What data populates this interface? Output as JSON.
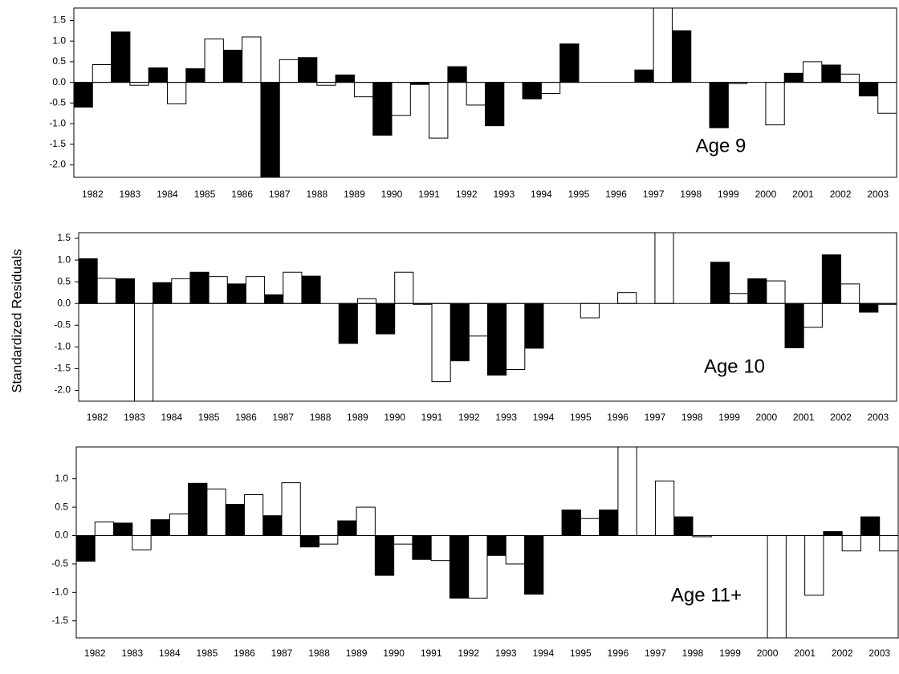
{
  "y_axis_label": "Standardized Residuals",
  "chart_data": [
    {
      "type": "bar",
      "annotation": "Age 9",
      "categories": [
        "1982",
        "1983",
        "1984",
        "1985",
        "1986",
        "1987",
        "1988",
        "1989",
        "1990",
        "1991",
        "1992",
        "1993",
        "1994",
        "1995",
        "1996",
        "1997",
        "1998",
        "1999",
        "2000",
        "2001",
        "2002",
        "2003"
      ],
      "series": [
        {
          "color": "#000000",
          "values": [
            -0.6,
            1.22,
            0.35,
            0.33,
            0.78,
            -2.3,
            0.6,
            0.18,
            -1.28,
            -0.05,
            0.38,
            -1.05,
            -0.4,
            0.93,
            0,
            0.3,
            1.25,
            -1.1,
            0,
            0.22,
            0.42,
            -0.33
          ]
        },
        {
          "color": "#ffffff",
          "values": [
            0.43,
            -0.07,
            -0.52,
            1.05,
            1.1,
            0.55,
            -0.07,
            -0.35,
            -0.8,
            -1.35,
            -0.55,
            0,
            -0.27,
            0,
            0,
            1.8,
            0,
            -0.03,
            -1.03,
            0.5,
            0.2,
            -0.75
          ]
        }
      ],
      "ylim": [
        -2.3,
        1.8
      ],
      "yticks": [
        {
          "value": -2,
          "label": "-2.0"
        },
        -1.5,
        {
          "value": -1,
          "label": "-1.0"
        },
        -0.5,
        {
          "value": 0,
          "label": "0.0"
        },
        0.5,
        {
          "value": 1,
          "label": "1.0"
        },
        1.5
      ]
    },
    {
      "type": "bar",
      "annotation": "Age 10",
      "categories": [
        "1982",
        "1983",
        "1984",
        "1985",
        "1986",
        "1987",
        "1988",
        "1989",
        "1990",
        "1991",
        "1992",
        "1993",
        "1994",
        "1995",
        "1996",
        "1997",
        "1998",
        "1999",
        "2000",
        "2001",
        "2002",
        "2003"
      ],
      "series": [
        {
          "color": "#000000",
          "values": [
            1.03,
            0.57,
            0.48,
            0.72,
            0.45,
            0.2,
            0.63,
            -0.92,
            -0.7,
            -0.02,
            -1.32,
            -1.65,
            -1.03,
            0,
            0,
            0,
            0,
            0.95,
            0.57,
            -1.02,
            1.12,
            -0.2
          ]
        },
        {
          "color": "#ffffff",
          "values": [
            0.58,
            -2.25,
            0.57,
            0.62,
            0.62,
            0.72,
            0,
            0.11,
            0.72,
            -1.8,
            -0.75,
            -1.52,
            0,
            -0.33,
            0.25,
            1.63,
            0,
            0.23,
            0.52,
            -0.55,
            0.45,
            -0.02
          ]
        }
      ],
      "ylim": [
        -2.25,
        1.63
      ],
      "yticks": [
        {
          "value": -2,
          "label": "-2.0"
        },
        -1.5,
        {
          "value": -1,
          "label": "-1.0"
        },
        -0.5,
        {
          "value": 0,
          "label": "0.0"
        },
        0.5,
        {
          "value": 1,
          "label": "1.0"
        },
        1.5
      ]
    },
    {
      "type": "bar",
      "annotation": "Age 11+",
      "categories": [
        "1982",
        "1983",
        "1984",
        "1985",
        "1986",
        "1987",
        "1988",
        "1989",
        "1990",
        "1991",
        "1992",
        "1993",
        "1994",
        "1995",
        "1996",
        "1997",
        "1998",
        "1999",
        "2000",
        "2001",
        "2002",
        "2003"
      ],
      "series": [
        {
          "color": "#000000",
          "values": [
            -0.45,
            0.22,
            0.28,
            0.92,
            0.55,
            0.35,
            -0.2,
            0.26,
            -0.7,
            -0.42,
            -1.1,
            -0.35,
            -1.03,
            0.45,
            0.45,
            0,
            0.33,
            0,
            0,
            0,
            0.07,
            0.33
          ]
        },
        {
          "color": "#ffffff",
          "values": [
            0.24,
            -0.25,
            0.38,
            0.82,
            0.72,
            0.93,
            -0.15,
            0.5,
            -0.15,
            -0.44,
            -1.1,
            -0.5,
            0,
            0.3,
            1.56,
            0.96,
            -0.02,
            0,
            -1.8,
            -1.05,
            -0.27,
            -0.27
          ]
        }
      ],
      "ylim": [
        -1.8,
        1.56
      ],
      "yticks": [
        -1.5,
        {
          "value": -1,
          "label": "-1.0"
        },
        -0.5,
        {
          "value": 0,
          "label": "0.0"
        },
        0.5,
        {
          "value": 1,
          "label": "1.0"
        }
      ]
    }
  ]
}
